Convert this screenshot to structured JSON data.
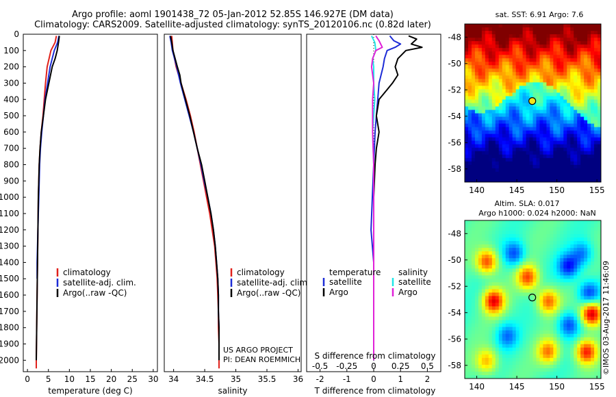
{
  "header": {
    "line1": "Argo profile: aoml 1901438_72 05-Jan-2012 52.85S 146.927E (DM data)",
    "line2": "Climatology: CARS2009. Satellite-adjusted climatology: synTS_20120106.nc (0.82d later)"
  },
  "maps": {
    "sst_title": "sat. SST: 6.91  Argo: 7.6",
    "sla_title_1": "Altim. SLA: 0.017",
    "sla_title_2": "Argo h1000: 0.024  h2000: NaN",
    "credit": "©IMOS 03-Aug-2017 11:46:09",
    "lat_ticks": [
      -48,
      -50,
      -52,
      -54,
      -56,
      -58
    ],
    "lon_ticks": [
      140,
      145,
      150,
      155
    ],
    "float_lon": 146.93,
    "float_lat": -52.85
  },
  "project_note": {
    "line1": "US ARGO PROJECT",
    "line2": "PI: DEAN ROEMMICH"
  },
  "colors": {
    "climatology": "#e0201a",
    "satellite": "#1c2bd6",
    "argo": "#000000",
    "argo_sal": "#e020d8",
    "sat_sal": "#1fe6e8"
  },
  "chart_data": [
    {
      "type": "line",
      "xlabel": "temperature (deg C)",
      "ylabel": "",
      "xlim": [
        -1,
        31
      ],
      "ylim": [
        2070,
        0
      ],
      "xticks": [
        0,
        5,
        10,
        15,
        20,
        25,
        30
      ],
      "yticks": [
        0,
        100,
        200,
        300,
        400,
        500,
        600,
        700,
        800,
        900,
        1000,
        1100,
        1200,
        1300,
        1400,
        1500,
        1600,
        1700,
        1800,
        1900,
        2000
      ],
      "legend": [
        "climatology",
        "satellite-adj. clim.",
        "Argo(..raw -QC)"
      ],
      "legend_location": "lower-center",
      "series": [
        {
          "name": "climatology",
          "depth": [
            10,
            50,
            100,
            200,
            300,
            400,
            500,
            600,
            700,
            800,
            1000,
            1200,
            1400,
            1600,
            1800,
            2000,
            2050
          ],
          "values": [
            6.9,
            6.6,
            5.6,
            4.7,
            4.3,
            4.0,
            3.7,
            3.3,
            3.0,
            2.8,
            2.6,
            2.5,
            2.4,
            2.3,
            2.2,
            2.1,
            2.1
          ]
        },
        {
          "name": "satellite-adj. clim.",
          "depth": [
            10,
            50,
            100,
            200,
            300,
            400,
            500,
            600,
            700,
            800,
            1000,
            1100,
            1200,
            1300,
            1400,
            1500
          ],
          "values": [
            7.5,
            7.2,
            6.4,
            5.4,
            4.8,
            4.2,
            3.8,
            3.4,
            3.1,
            2.9,
            2.7,
            2.6,
            2.5,
            2.4,
            2.3,
            2.3
          ]
        },
        {
          "name": "Argo(..raw -QC)",
          "depth": [
            10,
            50,
            100,
            150,
            200,
            300,
            400,
            500,
            600,
            700,
            800,
            1000,
            1200,
            1400,
            1600,
            1800,
            2000
          ],
          "values": [
            7.6,
            7.4,
            7.1,
            6.6,
            5.9,
            5.1,
            4.3,
            3.8,
            3.3,
            3.0,
            2.8,
            2.6,
            2.5,
            2.4,
            2.3,
            2.2,
            2.1
          ]
        }
      ]
    },
    {
      "type": "line",
      "xlabel": "salinity",
      "ylabel": "",
      "xlim": [
        33.85,
        36.05
      ],
      "ylim": [
        2070,
        0
      ],
      "xticks": [
        34,
        34.5,
        35,
        35.5,
        36
      ],
      "xticklabels": [
        "34",
        "34.5",
        "35",
        "35.5",
        "36"
      ],
      "legend": [
        "climatology",
        "satellite-adj. clim.",
        "Argo(..raw -QC)"
      ],
      "legend_location": "lower-right",
      "series": [
        {
          "name": "climatology",
          "depth": [
            10,
            100,
            200,
            300,
            400,
            500,
            600,
            700,
            800,
            900,
            1000,
            1100,
            1200,
            1300,
            1400,
            1500,
            1600,
            1700,
            1800,
            1900,
            2000,
            2050
          ],
          "values": [
            33.97,
            33.99,
            34.04,
            34.12,
            34.2,
            34.27,
            34.33,
            34.38,
            34.43,
            34.48,
            34.53,
            34.58,
            34.62,
            34.66,
            34.68,
            34.7,
            34.71,
            34.72,
            34.72,
            34.73,
            34.73,
            34.73
          ]
        },
        {
          "name": "satellite-adj. clim.",
          "depth": [
            10,
            50,
            100,
            200,
            300,
            400,
            500,
            600,
            700,
            800,
            900,
            1000,
            1100,
            1200,
            1300,
            1400,
            1500,
            1600,
            1700,
            1800,
            1900
          ],
          "values": [
            33.94,
            33.96,
            33.98,
            34.05,
            34.11,
            34.18,
            34.25,
            34.32,
            34.38,
            34.44,
            34.49,
            34.55,
            34.6,
            34.64,
            34.67,
            34.69,
            34.71,
            34.72,
            34.72,
            34.73,
            34.73
          ]
        },
        {
          "name": "Argo(..raw -QC)",
          "depth": [
            10,
            50,
            100,
            200,
            250,
            300,
            400,
            500,
            600,
            700,
            800,
            900,
            1000,
            1100,
            1200,
            1300,
            1400,
            1500,
            1600,
            1700,
            1800,
            1900,
            2000
          ],
          "values": [
            33.95,
            33.97,
            33.99,
            34.06,
            34.1,
            34.12,
            34.19,
            34.26,
            34.32,
            34.38,
            34.45,
            34.5,
            34.55,
            34.6,
            34.64,
            34.67,
            34.69,
            34.71,
            34.72,
            34.72,
            34.73,
            34.73,
            34.73
          ]
        }
      ]
    },
    {
      "type": "line",
      "xlabel": "T difference from climatology",
      "xlabel2": "S difference from climatology",
      "ylabel": "",
      "xlim": [
        -2.5,
        2.5
      ],
      "ylim": [
        2070,
        0
      ],
      "xticks": [
        -2,
        -1,
        0,
        1,
        2
      ],
      "xticks_salinity": [
        -0.5,
        -0.25,
        0,
        0.25,
        0.5
      ],
      "legend_groups": [
        "temperature",
        "salinity"
      ],
      "legend": [
        "satellite",
        "Argo",
        "satellite",
        "Argo"
      ],
      "legend_location": "lower-center",
      "series": [
        {
          "name": "temperature satellite",
          "depth": [
            10,
            40,
            60,
            80,
            100,
            150,
            200,
            300,
            400,
            500,
            600,
            800,
            1000,
            1200,
            1400,
            1600,
            1800,
            2000
          ],
          "values": [
            0.6,
            0.75,
            1.0,
            0.8,
            0.5,
            0.4,
            0.35,
            0.2,
            0.15,
            0.1,
            0.05,
            0.0,
            -0.05,
            -0.1,
            0.0,
            0.0,
            0.0,
            0.0
          ]
        },
        {
          "name": "temperature Argo",
          "depth": [
            10,
            30,
            60,
            80,
            100,
            150,
            200,
            250,
            300,
            350,
            400,
            500,
            600,
            700,
            800,
            1000,
            1200,
            1400,
            1600,
            1800,
            2000
          ],
          "values": [
            1.3,
            1.6,
            1.4,
            1.8,
            1.2,
            0.9,
            0.8,
            0.9,
            0.7,
            0.45,
            0.2,
            0.1,
            0.2,
            0.1,
            0.05,
            0.0,
            0.0,
            0.0,
            0.0,
            0.0,
            0.0
          ]
        },
        {
          "name": "salinity satellite",
          "depth": [
            10,
            50,
            100,
            150,
            200,
            300,
            400,
            500,
            600,
            800,
            1000,
            1200,
            1400,
            1600,
            1800,
            2000
          ],
          "values": [
            -0.02,
            0.01,
            0.02,
            -0.01,
            0.0,
            0.0,
            0.01,
            0.0,
            -0.01,
            0.0,
            0.0,
            0.0,
            0.0,
            0.0,
            0.0,
            0.0
          ]
        },
        {
          "name": "salinity Argo",
          "depth": [
            10,
            40,
            80,
            100,
            150,
            200,
            300,
            400,
            600,
            800,
            1000,
            1200,
            1400,
            1600,
            1800,
            2000
          ],
          "values": [
            0.02,
            0.05,
            0.08,
            0.02,
            -0.01,
            -0.02,
            0.0,
            -0.01,
            -0.01,
            0.0,
            0.0,
            0.0,
            0.0,
            0.0,
            0.0,
            0.0
          ]
        }
      ]
    }
  ]
}
